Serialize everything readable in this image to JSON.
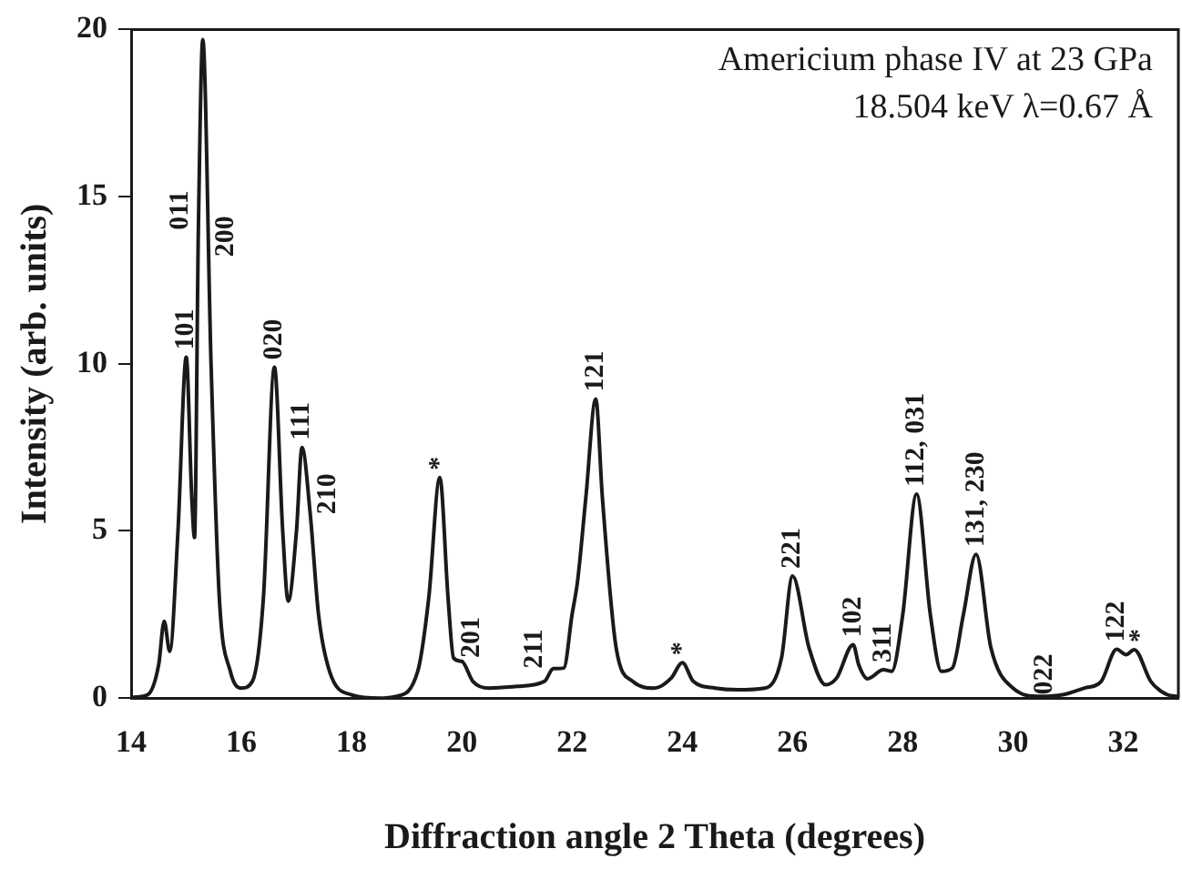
{
  "chart_data": {
    "type": "line",
    "xlabel": "Diffraction angle 2 Theta (degrees)",
    "ylabel": "Intensity (arb. units)",
    "xlim": [
      14,
      33
    ],
    "xticks": [
      14,
      16,
      18,
      20,
      22,
      24,
      26,
      28,
      30,
      32
    ],
    "ylim": [
      0,
      20
    ],
    "yticks": [
      0,
      5,
      10,
      15,
      20
    ],
    "grid": false,
    "legend": false,
    "marker": "none",
    "line_style": "solid",
    "series": [
      {
        "color": "#1a1a1a",
        "x": [
          14.0,
          14.3,
          14.5,
          14.6,
          14.7,
          14.85,
          15.0,
          15.1,
          15.15,
          15.22,
          15.3,
          15.45,
          15.6,
          15.8,
          16.0,
          16.2,
          16.4,
          16.6,
          16.75,
          16.85,
          17.0,
          17.1,
          17.25,
          17.4,
          17.6,
          18.0,
          18.5,
          18.8,
          19.2,
          19.4,
          19.6,
          19.75,
          19.85,
          20.0,
          20.2,
          20.5,
          21.0,
          21.5,
          21.66,
          21.85,
          22.0,
          22.1,
          22.25,
          22.43,
          22.55,
          22.8,
          23.1,
          23.5,
          23.8,
          24.0,
          24.2,
          24.6,
          25.0,
          25.5,
          25.8,
          26.0,
          26.3,
          26.6,
          26.8,
          27.1,
          27.2,
          27.36,
          27.65,
          27.8,
          28.0,
          28.25,
          28.5,
          28.7,
          28.9,
          29.1,
          29.33,
          29.6,
          30.0,
          30.5,
          30.9,
          31.3,
          31.6,
          31.88,
          32.05,
          32.2,
          32.5,
          32.8,
          33.0
        ],
        "values": [
          0.02,
          0.1,
          1.0,
          2.3,
          1.4,
          5.0,
          10.2,
          6.0,
          4.8,
          14.0,
          19.7,
          10.0,
          3.0,
          0.8,
          0.3,
          0.5,
          3.0,
          9.9,
          5.0,
          2.9,
          5.0,
          7.5,
          5.5,
          2.5,
          0.8,
          0.1,
          0.0,
          0.05,
          0.8,
          3.0,
          6.6,
          3.0,
          1.2,
          1.1,
          0.5,
          0.3,
          0.35,
          0.5,
          0.88,
          0.9,
          2.5,
          3.5,
          6.0,
          8.95,
          6.0,
          1.5,
          0.5,
          0.3,
          0.6,
          1.06,
          0.5,
          0.3,
          0.25,
          0.3,
          1.2,
          3.65,
          1.5,
          0.4,
          0.6,
          1.6,
          1.0,
          0.58,
          0.85,
          0.8,
          2.5,
          6.1,
          2.5,
          0.8,
          0.9,
          2.5,
          4.3,
          1.5,
          0.3,
          0.05,
          0.1,
          0.3,
          0.5,
          1.46,
          1.3,
          1.45,
          0.5,
          0.1,
          0.05
        ]
      }
    ],
    "annotations": [
      "Americium phase IV at 23 GPa",
      "18.504 keV λ=0.67 Å",
      {
        "text": "101",
        "x": 15.0,
        "y": 10.2
      },
      {
        "text": "011",
        "x": 15.22,
        "y": 14.0
      },
      {
        "text": "200",
        "x": 15.4,
        "y": 13.2
      },
      {
        "text": "020",
        "x": 16.6,
        "y": 9.9
      },
      {
        "text": "111",
        "x": 17.1,
        "y": 7.5
      },
      {
        "text": "210",
        "x": 17.25,
        "y": 5.5
      },
      {
        "text": "*",
        "x": 19.6,
        "y": 6.6
      },
      {
        "text": "201",
        "x": 19.85,
        "y": 1.2
      },
      {
        "text": "211",
        "x": 21.66,
        "y": 0.88
      },
      {
        "text": "121",
        "x": 22.43,
        "y": 8.95
      },
      {
        "text": "*",
        "x": 24.0,
        "y": 1.06
      },
      {
        "text": "221",
        "x": 26.0,
        "y": 3.65
      },
      {
        "text": "102",
        "x": 27.1,
        "y": 1.6
      },
      {
        "text": "311",
        "x": 27.65,
        "y": 0.85
      },
      {
        "text": "112, 031",
        "x": 28.25,
        "y": 6.1
      },
      {
        "text": "131, 230",
        "x": 29.33,
        "y": 4.3
      },
      {
        "text": "022",
        "x": 30.9,
        "y": 0.1
      },
      {
        "text": "122",
        "x": 31.88,
        "y": 1.46
      },
      {
        "text": "*",
        "x": 32.2,
        "y": 1.45
      }
    ]
  }
}
